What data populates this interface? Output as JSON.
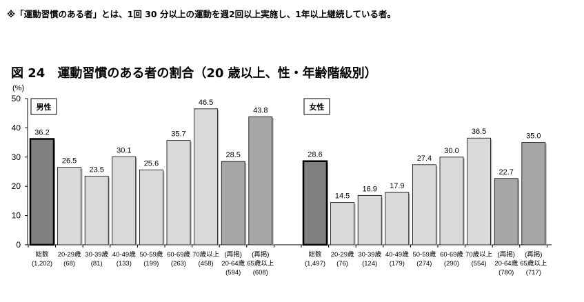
{
  "note": "※「運動習慣のある者」とは、1回 30 分以上の運動を週2回以上実施し、1年以上継続している者。",
  "title": "図 24　運動習慣のある者の割合（20 歳以上、性・年齢階級別）",
  "chart_data": [
    {
      "type": "bar",
      "legend": "男性",
      "ylabel": "(%)",
      "ylim": [
        0,
        50
      ],
      "yticks": [
        0,
        10,
        20,
        30,
        40,
        50
      ],
      "categories": [
        [
          "総数",
          "(1,202)"
        ],
        [
          "20-29歳",
          "(68)"
        ],
        [
          "30-39歳",
          "(81)"
        ],
        [
          "40-49歳",
          "(133)"
        ],
        [
          "50-59歳",
          "(199)"
        ],
        [
          "60-69歳",
          "(263)"
        ],
        [
          "70歳以上",
          "(458)"
        ],
        [
          "(再掲)",
          "20-64歳",
          "(594)"
        ],
        [
          "(再掲)",
          "65歳以上",
          "(608)"
        ]
      ],
      "values": [
        36.2,
        26.5,
        23.5,
        30.1,
        25.6,
        35.7,
        46.5,
        28.5,
        43.8
      ],
      "labels": [
        "36.2",
        "26.5",
        "23.5",
        "30.1",
        "25.6",
        "35.7",
        "46.5",
        "28.5",
        "43.8"
      ]
    },
    {
      "type": "bar",
      "legend": "女性",
      "ylim": [
        0,
        50
      ],
      "categories": [
        [
          "総数",
          "(1,497)"
        ],
        [
          "20-29歳",
          "(76)"
        ],
        [
          "30-39歳",
          "(124)"
        ],
        [
          "40-49歳",
          "(179)"
        ],
        [
          "50-59歳",
          "(274)"
        ],
        [
          "60-69歳",
          "(290)"
        ],
        [
          "70歳以上",
          "(554)"
        ],
        [
          "(再掲)",
          "20-64歳",
          "(780)"
        ],
        [
          "(再掲)",
          "65歳以上",
          "(717)"
        ]
      ],
      "values": [
        28.6,
        14.5,
        16.9,
        17.9,
        27.4,
        30.0,
        36.5,
        22.7,
        35.0
      ],
      "labels": [
        "28.6",
        "14.5",
        "16.9",
        "17.9",
        "27.4",
        "30.0",
        "36.5",
        "22.7",
        "35.0"
      ]
    }
  ],
  "colors": {
    "total": "#808080",
    "age_group": "#d9d9d9",
    "relisted": "#a6a6a6",
    "outline": "#000000"
  }
}
